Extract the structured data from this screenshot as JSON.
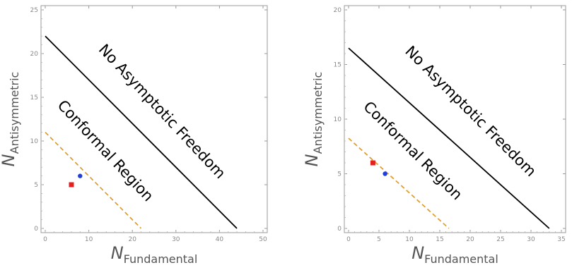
{
  "chart_data": [
    {
      "type": "scatter",
      "xlabel": {
        "base": "N",
        "sub": "Fundamental"
      },
      "ylabel": {
        "base": "N",
        "sub": "Antisymmetric"
      },
      "xlim": [
        0,
        50
      ],
      "ylim": [
        0,
        25
      ],
      "xticks": [
        0,
        10,
        20,
        30,
        40,
        50
      ],
      "yticks": [
        0,
        5,
        10,
        15,
        20,
        25
      ],
      "grid": false,
      "lines": [
        {
          "style": "solid",
          "color": "#000000",
          "points": [
            [
              0,
              22
            ],
            [
              44,
              0
            ]
          ]
        },
        {
          "style": "dashed",
          "color": "#e0a030",
          "points": [
            [
              0,
              11
            ],
            [
              22,
              0
            ]
          ]
        }
      ],
      "points": [
        {
          "x": 6,
          "y": 5,
          "marker": "square",
          "color": "#e51f1f"
        },
        {
          "x": 8,
          "y": 6,
          "marker": "circle",
          "color": "#1f3fd8"
        }
      ],
      "annotations": [
        {
          "text": "No Asymptotic Freedom",
          "at": [
            26,
            13
          ],
          "angle_deg": 47
        },
        {
          "text": "Conformal Region",
          "at": [
            13,
            8.5
          ],
          "angle_deg": 47
        }
      ]
    },
    {
      "type": "scatter",
      "xlabel": {
        "base": "N",
        "sub": "Fundamental"
      },
      "ylabel": {
        "base": "N",
        "sub": "Antisymmetric"
      },
      "xlim": [
        0,
        35
      ],
      "ylim": [
        0,
        20
      ],
      "xticks": [
        0,
        5,
        10,
        15,
        20,
        25,
        30,
        35
      ],
      "yticks": [
        0,
        5,
        10,
        15,
        20
      ],
      "grid": false,
      "lines": [
        {
          "style": "solid",
          "color": "#000000",
          "points": [
            [
              0,
              16.5
            ],
            [
              33,
              0
            ]
          ]
        },
        {
          "style": "dashed",
          "color": "#e0a030",
          "points": [
            [
              0,
              8.25
            ],
            [
              16.5,
              0
            ]
          ]
        }
      ],
      "points": [
        {
          "x": 4,
          "y": 6,
          "marker": "square",
          "color": "#e51f1f"
        },
        {
          "x": 6,
          "y": 5,
          "marker": "circle",
          "color": "#1f3fd8"
        }
      ],
      "annotations": [
        {
          "text": "No Asymptotic Freedom",
          "at": [
            19.5,
            10.4
          ],
          "angle_deg": 45
        },
        {
          "text": "Conformal Region",
          "at": [
            10,
            6.8
          ],
          "angle_deg": 45
        }
      ]
    }
  ]
}
